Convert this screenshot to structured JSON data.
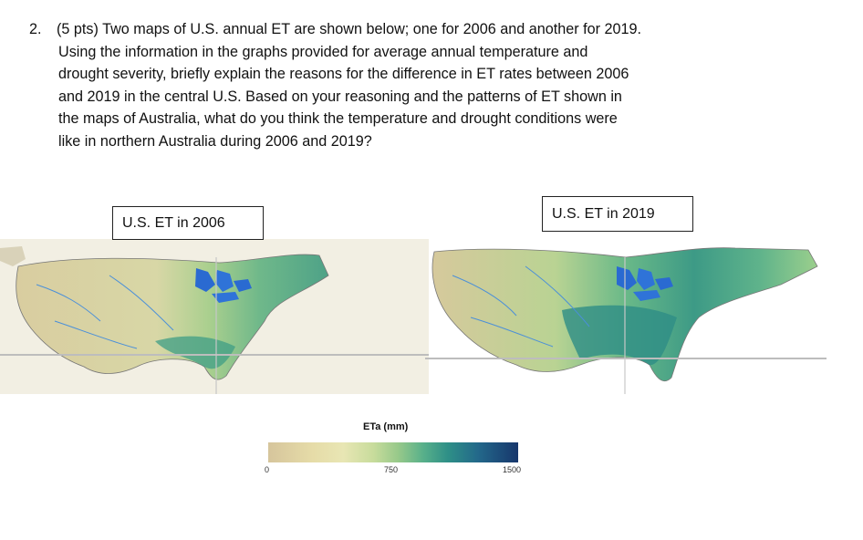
{
  "question": {
    "number": "2.",
    "line1": "(5  pts)  Two maps of U.S. annual ET are shown below; one for 2006 and another for 2019.",
    "lines": [
      "Using the information in the graphs provided for average annual temperature and",
      "drought severity, briefly explain the reasons for the difference in ET rates between 2006",
      "and 2019 in the central U.S.  Based on your reasoning and the patterns of ET shown in",
      "the maps of Australia, what do you think the temperature and drought conditions were",
      "like in northern Australia during 2006 and 2019?"
    ]
  },
  "maps": [
    {
      "label": "U.S. ET in 2006"
    },
    {
      "label": "U.S. ET in 2019"
    }
  ],
  "legend": {
    "title": "ETa (mm)",
    "ticks": [
      "0",
      "750",
      "1500"
    ],
    "colors": [
      "#d6c59c",
      "#e8e6b4",
      "#97c98a",
      "#2e8f87",
      "#17366c"
    ]
  }
}
